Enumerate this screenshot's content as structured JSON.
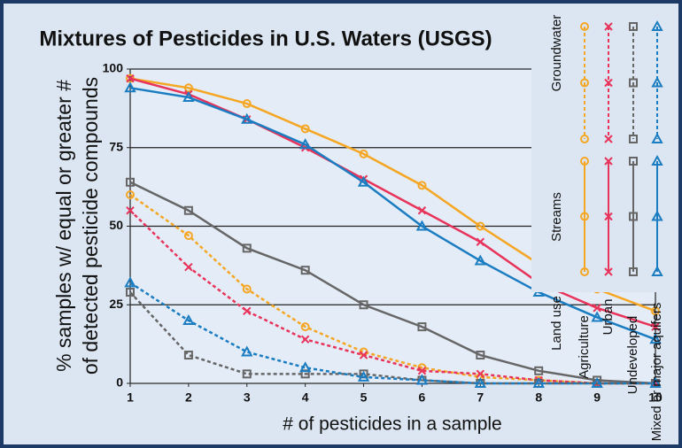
{
  "chart_data": {
    "type": "line",
    "title": "Mixtures of Pesticides in U.S. Waters (USGS)",
    "y_label": [
      "% samples w/ equal or greater #",
      "of detected pesticide compounds"
    ],
    "x_label": "# of pesticides in a sample",
    "x": [
      1,
      2,
      3,
      4,
      5,
      6,
      7,
      8,
      9,
      10
    ],
    "xlim": [
      1,
      10
    ],
    "xticks": [
      1,
      2,
      3,
      4,
      5,
      6,
      7,
      8,
      9,
      10
    ],
    "ylim": [
      0,
      100
    ],
    "yticks": [
      0,
      25,
      50,
      75,
      100
    ],
    "grid": true,
    "legend_heading": "Land use",
    "sources": [
      {
        "name": "Groundwater",
        "dashed": true
      },
      {
        "name": "Streams",
        "dashed": false
      }
    ],
    "land_uses": [
      {
        "name": "Agriculture",
        "color": "#f5a623",
        "marker": "circle",
        "streams": [
          97,
          94,
          89,
          81,
          73,
          63,
          50,
          38,
          30,
          23
        ],
        "groundwater": [
          60,
          47,
          30,
          18,
          10,
          5,
          2,
          1,
          0,
          0
        ]
      },
      {
        "name": "Urban",
        "color": "#e8335a",
        "marker": "x",
        "streams": [
          97,
          92,
          84,
          75,
          65,
          55,
          45,
          32,
          24,
          18
        ],
        "groundwater": [
          55,
          37,
          23,
          14,
          9,
          4,
          3,
          1,
          0,
          0
        ]
      },
      {
        "name": "Undeveloped",
        "color": "#666666",
        "marker": "square",
        "streams": [
          64,
          55,
          43,
          36,
          25,
          18,
          9,
          4,
          1,
          0
        ],
        "groundwater": [
          29,
          9,
          3,
          3,
          3,
          1,
          0,
          0,
          0,
          0
        ]
      },
      {
        "name": "Mixed or major aquifers",
        "color": "#1a7cc1",
        "marker": "triangle",
        "streams": [
          94,
          91,
          84,
          76,
          64,
          50,
          39,
          29,
          21,
          14
        ],
        "groundwater": [
          32,
          20,
          10,
          5,
          2,
          1,
          0,
          0,
          0,
          0
        ]
      }
    ]
  }
}
